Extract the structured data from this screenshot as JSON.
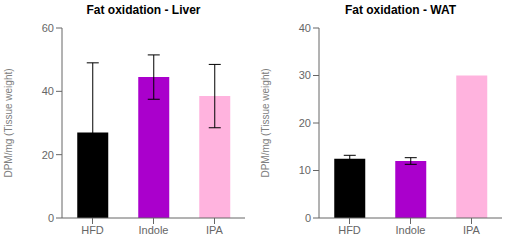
{
  "chart_data": [
    {
      "type": "bar",
      "title": "Fat oxidation - Liver",
      "categories": [
        "HFD",
        "Indole",
        "IPA"
      ],
      "values": [
        27,
        44.5,
        38.5
      ],
      "errors": [
        22,
        7,
        10
      ],
      "colors": [
        "#000000",
        "#AA00CC",
        "#FFB3DE"
      ],
      "ylim": [
        0,
        60
      ],
      "yticks": [
        0,
        20,
        40,
        60
      ],
      "ylabel": "DPM/mg (Tissue weight)",
      "grid": false
    },
    {
      "type": "bar",
      "title": "Fat oxidation - WAT",
      "categories": [
        "HFD",
        "Indole",
        "IPA"
      ],
      "values": [
        12.5,
        12.0,
        30
      ],
      "errors": [
        0.7,
        0.7,
        0
      ],
      "colors": [
        "#000000",
        "#AA00CC",
        "#FFB3DE"
      ],
      "ylim": [
        0,
        40
      ],
      "yticks": [
        0,
        10,
        20,
        30,
        40
      ],
      "ylabel": "DPM/mg (Tissue weight)",
      "grid": false
    }
  ]
}
